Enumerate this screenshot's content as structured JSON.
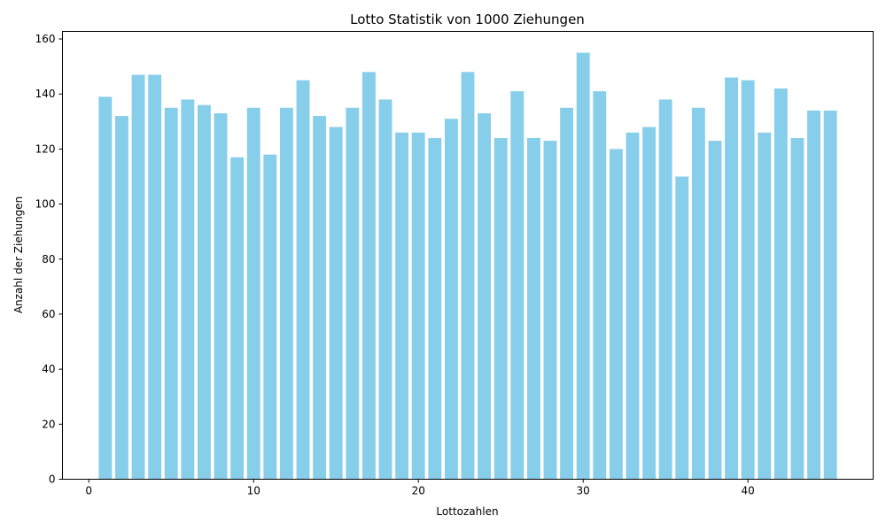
{
  "chart_data": {
    "type": "bar",
    "title": "Lotto Statistik von 1000 Ziehungen",
    "xlabel": "Lottozahlen",
    "ylabel": "Anzahl der Ziehungen",
    "x": [
      1,
      2,
      3,
      4,
      5,
      6,
      7,
      8,
      9,
      10,
      11,
      12,
      13,
      14,
      15,
      16,
      17,
      18,
      19,
      20,
      21,
      22,
      23,
      24,
      25,
      26,
      27,
      28,
      29,
      30,
      31,
      32,
      33,
      34,
      35,
      36,
      37,
      38,
      39,
      40,
      41,
      42,
      43,
      44,
      45
    ],
    "values": [
      139,
      132,
      147,
      147,
      135,
      138,
      136,
      133,
      117,
      135,
      118,
      135,
      145,
      132,
      128,
      135,
      148,
      138,
      126,
      126,
      124,
      131,
      148,
      133,
      124,
      141,
      124,
      123,
      135,
      155,
      141,
      120,
      126,
      128,
      138,
      110,
      135,
      123,
      146,
      145,
      126,
      142,
      124,
      134,
      134
    ],
    "xlim": [
      -1.6,
      47.6
    ],
    "ylim": [
      0,
      162.75
    ],
    "xticks": [
      0,
      10,
      20,
      30,
      40
    ],
    "yticks": [
      0,
      20,
      40,
      60,
      80,
      100,
      120,
      140,
      160
    ],
    "bar_color": "#87CEEB",
    "grid": false,
    "legend": "none"
  }
}
